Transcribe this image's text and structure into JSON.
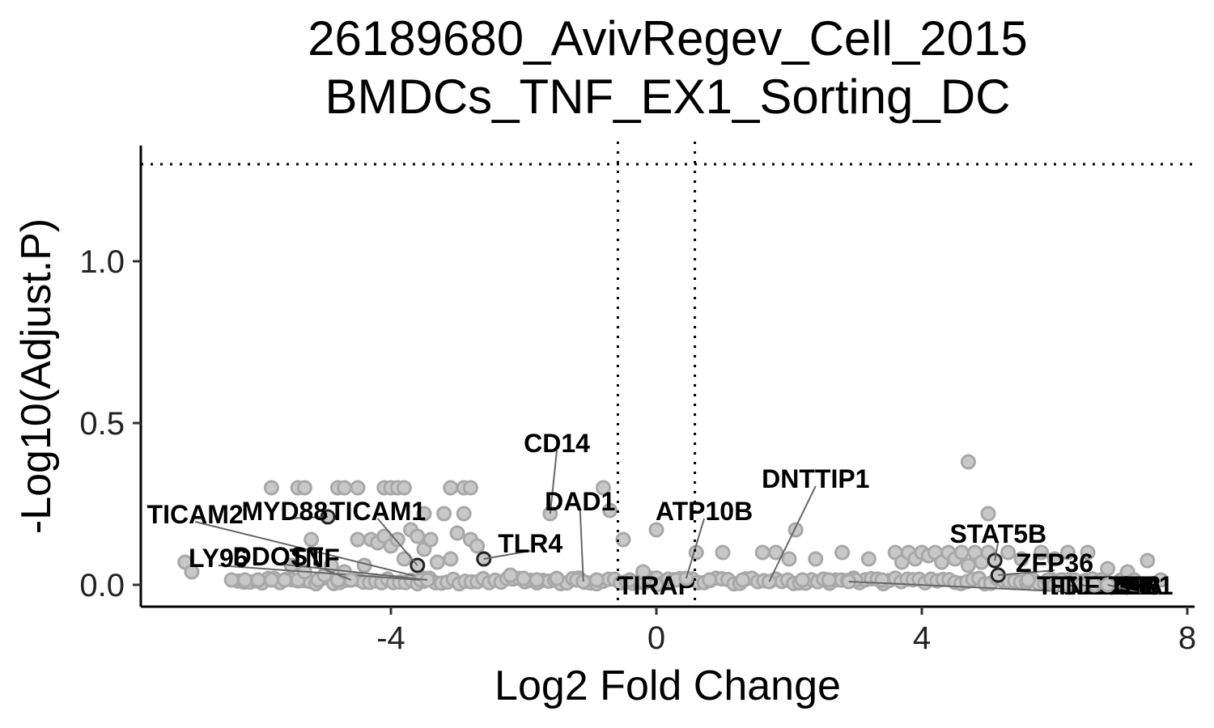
{
  "chart_data": {
    "type": "scatter",
    "title": [
      "26189680_AvivRegev_Cell_2015",
      "BMDCs_TNF_EX1_Sorting_DC"
    ],
    "xlabel": "Log2 Fold Change",
    "ylabel": "-Log10(Adjust.P)",
    "xlim": [
      -8,
      8
    ],
    "ylim": [
      -0.06,
      1.36
    ],
    "xticks": [
      -4,
      0,
      4,
      8
    ],
    "xtick_labels": [
      "-4",
      "0",
      "4",
      "8"
    ],
    "yticks": [
      0.0,
      0.5,
      1.0
    ],
    "ytick_labels": [
      "0.0",
      "0.5",
      "1.0"
    ],
    "thresholds": {
      "fold_change": [
        -0.58,
        0.58
      ],
      "neg_log10_p": 1.3
    },
    "grid": false,
    "colors": {
      "point_fill": "#c8c8c8",
      "point_stroke": "#a8a8a8",
      "highlight_stroke": "#222222",
      "threshold_line": "#000000"
    },
    "background_points": [
      [
        -7.1,
        0.07
      ],
      [
        -7.0,
        0.04
      ],
      [
        -6.4,
        0.015
      ],
      [
        -6.2,
        0.015
      ],
      [
        -6.0,
        0.015
      ],
      [
        -5.8,
        0.015
      ],
      [
        -5.6,
        0.015
      ],
      [
        -5.5,
        0.06
      ],
      [
        -5.4,
        0.015
      ],
      [
        -5.3,
        0.04
      ],
      [
        -5.2,
        0.14
      ],
      [
        -5.1,
        0.015
      ],
      [
        -5.0,
        0.03
      ],
      [
        -4.9,
        0.06
      ],
      [
        -4.8,
        0.015
      ],
      [
        -4.7,
        0.04
      ],
      [
        -4.6,
        0.015
      ],
      [
        -4.5,
        0.14
      ],
      [
        -4.4,
        0.06
      ],
      [
        -4.3,
        0.14
      ],
      [
        -4.2,
        0.13
      ],
      [
        -4.1,
        0.15
      ],
      [
        -4.0,
        0.12
      ],
      [
        -3.9,
        0.14
      ],
      [
        -3.8,
        0.08
      ],
      [
        -3.7,
        0.17
      ],
      [
        -3.6,
        0.15
      ],
      [
        -3.5,
        0.11
      ],
      [
        -3.4,
        0.14
      ],
      [
        -3.3,
        0.07
      ],
      [
        -5.8,
        0.3
      ],
      [
        -5.4,
        0.3
      ],
      [
        -5.3,
        0.3
      ],
      [
        -4.8,
        0.3
      ],
      [
        -4.7,
        0.3
      ],
      [
        -4.5,
        0.3
      ],
      [
        -4.1,
        0.3
      ],
      [
        -4.0,
        0.3
      ],
      [
        -3.9,
        0.3
      ],
      [
        -3.8,
        0.3
      ],
      [
        -3.1,
        0.3
      ],
      [
        -2.9,
        0.3
      ],
      [
        -2.8,
        0.3
      ],
      [
        -3.5,
        0.22
      ],
      [
        -3.2,
        0.22
      ],
      [
        -2.9,
        0.22
      ],
      [
        -3.0,
        0.16
      ],
      [
        -2.8,
        0.14
      ],
      [
        -3.1,
        0.08
      ],
      [
        -2.7,
        0.12
      ],
      [
        -2.2,
        0.03
      ],
      [
        -2.0,
        0.02
      ],
      [
        -1.8,
        0.015
      ],
      [
        -1.5,
        0.02
      ],
      [
        -1.2,
        0.015
      ],
      [
        -0.9,
        0.015
      ],
      [
        -0.8,
        0.3
      ],
      [
        -0.7,
        0.23
      ],
      [
        -0.5,
        0.14
      ],
      [
        -0.4,
        0.015
      ],
      [
        -0.2,
        0.04
      ],
      [
        0.0,
        0.17
      ],
      [
        0.3,
        0.015
      ],
      [
        0.6,
        0.1
      ],
      [
        0.8,
        0.015
      ],
      [
        1.0,
        0.1
      ],
      [
        1.3,
        0.015
      ],
      [
        1.6,
        0.1
      ],
      [
        1.8,
        0.1
      ],
      [
        2.0,
        0.08
      ],
      [
        2.1,
        0.17
      ],
      [
        2.2,
        0.015
      ],
      [
        2.4,
        0.08
      ],
      [
        2.6,
        0.015
      ],
      [
        2.8,
        0.1
      ],
      [
        3.0,
        0.015
      ],
      [
        3.2,
        0.08
      ],
      [
        3.4,
        0.015
      ],
      [
        3.6,
        0.1
      ],
      [
        3.7,
        0.07
      ],
      [
        3.8,
        0.1
      ],
      [
        3.9,
        0.08
      ],
      [
        4.0,
        0.1
      ],
      [
        4.1,
        0.09
      ],
      [
        4.2,
        0.1
      ],
      [
        4.3,
        0.07
      ],
      [
        4.4,
        0.1
      ],
      [
        4.5,
        0.08
      ],
      [
        4.6,
        0.1
      ],
      [
        4.7,
        0.06
      ],
      [
        4.8,
        0.1
      ],
      [
        4.9,
        0.07
      ],
      [
        5.0,
        0.1
      ],
      [
        4.7,
        0.38
      ],
      [
        5.0,
        0.22
      ],
      [
        5.3,
        0.1
      ],
      [
        5.5,
        0.08
      ],
      [
        5.6,
        0.015
      ],
      [
        5.8,
        0.1
      ],
      [
        6.0,
        0.08
      ],
      [
        6.2,
        0.1
      ],
      [
        6.3,
        0.015
      ],
      [
        6.5,
        0.1
      ],
      [
        6.7,
        0.015
      ],
      [
        6.8,
        0.05
      ],
      [
        7.0,
        0.015
      ],
      [
        7.1,
        0.04
      ],
      [
        7.2,
        0.015
      ],
      [
        7.4,
        0.075
      ],
      [
        7.6,
        0.015
      ],
      [
        5.9,
        0.015
      ],
      [
        6.1,
        0.015
      ]
    ],
    "labeled_genes": [
      {
        "gene": "CD14",
        "x": -1.6,
        "y": 0.22,
        "highlight": false,
        "label_x": -1.5,
        "label_y": 0.44
      },
      {
        "gene": "DAD1",
        "x": -1.1,
        "y": 0.01,
        "highlight": false,
        "label_x": -1.15,
        "label_y": 0.26
      },
      {
        "gene": "TLR4",
        "x": -2.6,
        "y": 0.08,
        "highlight": true,
        "label_x": -1.9,
        "label_y": 0.13
      },
      {
        "gene": "TICAM2",
        "x": -3.5,
        "y": 0.02,
        "highlight": false,
        "label_x": -6.95,
        "label_y": 0.22
      },
      {
        "gene": "MYD88",
        "x": -4.95,
        "y": 0.21,
        "highlight": true,
        "label_x": -5.6,
        "label_y": 0.23
      },
      {
        "gene": "TICAM1",
        "x": -3.6,
        "y": 0.06,
        "highlight": true,
        "label_x": -4.2,
        "label_y": 0.23
      },
      {
        "gene": "LY96",
        "x": -3.55,
        "y": 0.015,
        "highlight": false,
        "label_x": -6.6,
        "label_y": 0.085
      },
      {
        "gene": "DDOST",
        "x": -3.45,
        "y": 0.015,
        "highlight": false,
        "label_x": -5.7,
        "label_y": 0.09
      },
      {
        "gene": "TNF",
        "x": -4.6,
        "y": 0.015,
        "highlight": false,
        "label_x": -5.15,
        "label_y": 0.085
      },
      {
        "gene": "TIRAP",
        "x": 0.0,
        "y": 0.0,
        "highlight": false,
        "label_x": 0.0,
        "label_y": 0.0
      },
      {
        "gene": "ATP10B",
        "x": 0.45,
        "y": 0.02,
        "highlight": false,
        "label_x": 0.72,
        "label_y": 0.23
      },
      {
        "gene": "DNTTIP1",
        "x": 1.7,
        "y": 0.01,
        "highlight": false,
        "label_x": 2.4,
        "label_y": 0.33
      },
      {
        "gene": "STAT5B",
        "x": 5.1,
        "y": 0.075,
        "highlight": true,
        "label_x": 5.15,
        "label_y": 0.16
      },
      {
        "gene": "ZFP36",
        "x": 5.15,
        "y": 0.03,
        "highlight": true,
        "label_x": 6.0,
        "label_y": 0.07
      },
      {
        "gene": "TICAM2B",
        "x": 2.9,
        "y": 0.01,
        "highlight": false,
        "label_x": 6.6,
        "label_y": 0.0
      },
      {
        "gene": "FAM53B",
        "x": 6.0,
        "y": 0.0,
        "highlight": false,
        "label_x": 6.7,
        "label_y": 0.0
      },
      {
        "gene": "TNFAIP3",
        "x": 6.2,
        "y": 0.0,
        "highlight": false,
        "label_x": 6.8,
        "label_y": 0.0
      },
      {
        "gene": "LRP1",
        "x": 6.4,
        "y": 0.0,
        "highlight": false,
        "label_x": 7.0,
        "label_y": 0.0
      },
      {
        "gene": "NFKBIA",
        "x": 6.6,
        "y": 0.0,
        "highlight": false,
        "label_x": 6.9,
        "label_y": 0.0
      },
      {
        "gene": "TLR1",
        "x": 6.8,
        "y": 0.0,
        "highlight": false,
        "label_x": 7.3,
        "label_y": 0.0
      }
    ]
  }
}
